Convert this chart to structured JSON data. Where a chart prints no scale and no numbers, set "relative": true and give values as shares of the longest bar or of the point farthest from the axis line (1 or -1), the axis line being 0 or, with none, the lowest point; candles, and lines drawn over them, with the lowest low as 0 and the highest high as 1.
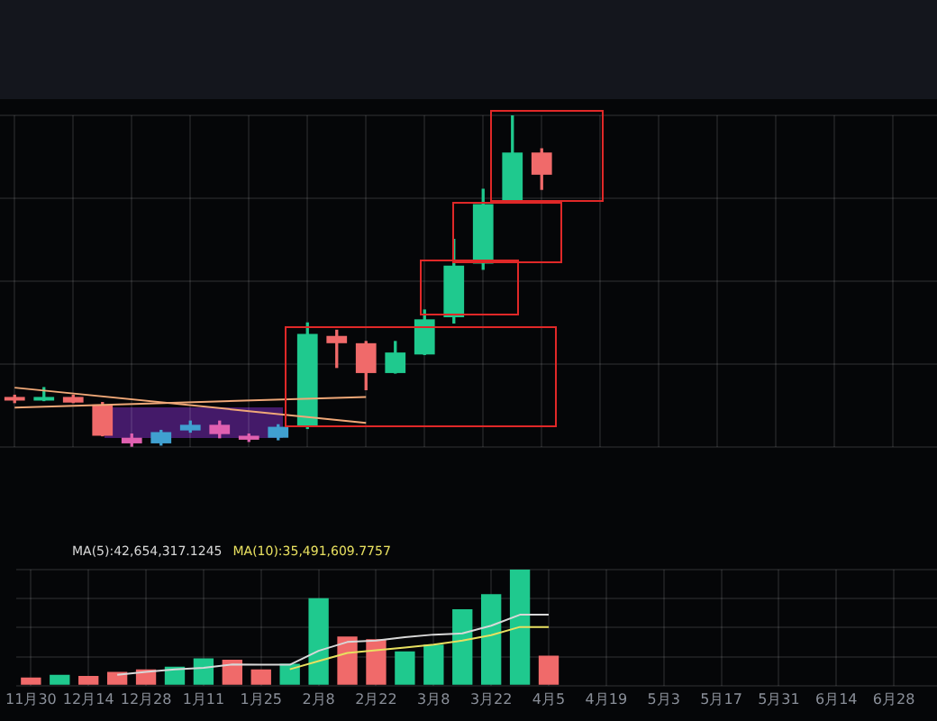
{
  "chart_data": [
    {
      "type": "candlestick",
      "relative": true,
      "grid": true,
      "tick_labels": false,
      "categories": [
        null,
        null,
        null,
        null,
        null,
        null,
        null,
        null,
        null,
        null,
        null,
        null,
        null,
        null,
        null,
        null,
        null,
        null,
        null
      ],
      "ohlc": [
        [
          0.151,
          0.156,
          0.134,
          0.14
        ],
        [
          0.14,
          0.179,
          0.14,
          0.151
        ],
        [
          0.151,
          0.156,
          0.134,
          0.134
        ],
        [
          0.128,
          0.134,
          0.034,
          0.034
        ],
        [
          0.028,
          0.039,
          0,
          0.011
        ],
        [
          0.011,
          0.05,
          0.006,
          0.045
        ],
        [
          0.05,
          0.078,
          0.045,
          0.067
        ],
        [
          0.067,
          0.078,
          0.028,
          0.039
        ],
        [
          0.034,
          0.039,
          0.017,
          0.022
        ],
        [
          0.028,
          0.067,
          0.022,
          0.061
        ],
        [
          0.061,
          0.374,
          0.056,
          0.341
        ],
        [
          0.335,
          0.352,
          0.24,
          0.313
        ],
        [
          0.313,
          0.318,
          0.173,
          0.223
        ],
        [
          0.223,
          0.318,
          0.223,
          0.285
        ],
        [
          0.279,
          0.413,
          0.279,
          0.385
        ],
        [
          0.391,
          0.626,
          0.374,
          0.547
        ],
        [
          0.553,
          0.777,
          0.536,
          0.732
        ],
        [
          0.737,
          1,
          0.737,
          0.888
        ],
        [
          0.888,
          0.899,
          0.777,
          0.821
        ]
      ],
      "colors": [
        "#f06a6a",
        "#1fc98e",
        "#f06a6a",
        "#f06a6a",
        "#e060b0",
        "#40a0d0",
        "#40a0d0",
        "#e060b0",
        "#e060b0",
        "#40a0d0",
        "#1fc98e",
        "#f06a6a",
        "#f06a6a",
        "#1fc98e",
        "#1fc98e",
        "#1fc98e",
        "#1fc98e",
        "#1fc98e",
        "#f06a6a"
      ],
      "series": [
        {
          "type": "line",
          "color": "#f0a878",
          "values": [
            0.179,
            null,
            null,
            null,
            null,
            null,
            null,
            null,
            null,
            null,
            null,
            null,
            0.073,
            null,
            null,
            null,
            null,
            null,
            null
          ]
        },
        {
          "type": "line",
          "color": "#f0a878",
          "values": [
            0.119,
            null,
            null,
            null,
            null,
            null,
            null,
            null,
            null,
            null,
            null,
            null,
            0.151,
            null,
            null,
            null,
            null,
            null,
            null
          ]
        }
      ]
    },
    {
      "type": "bar",
      "relative": true,
      "grid": true,
      "legend": "top left",
      "categories": [
        "11月30",
        null,
        "12月14",
        null,
        "12月28",
        null,
        "1月11",
        null,
        "1月25",
        null,
        "2月8",
        null,
        "2月22",
        null,
        "3月8",
        null,
        "3月22",
        null,
        "4月5",
        null,
        "4月19",
        null,
        "5月3",
        null,
        "5月17",
        null,
        "5月31",
        null,
        "6月14",
        null,
        "6月28",
        null
      ],
      "series": [
        {
          "type": "bar",
          "values": [
            0.07,
            0.094,
            0.083,
            0.118,
            0.141,
            0.164,
            0.235,
            0.224,
            0.141,
            0.189,
            0.753,
            0.423,
            0.4,
            0.295,
            0.353,
            0.658,
            0.788,
            1,
            0.259,
            null,
            null,
            null,
            null,
            null,
            null,
            null,
            null,
            null,
            null,
            null,
            null,
            null
          ],
          "colors": [
            "#f06a6a",
            "#1fc98e",
            "#f06a6a",
            "#f06a6a",
            "#f06a6a",
            "#1fc98e",
            "#1fc98e",
            "#f06a6a",
            "#f06a6a",
            "#1fc98e",
            "#1fc98e",
            "#f06a6a",
            "#f06a6a",
            "#1fc98e",
            "#1fc98e",
            "#1fc98e",
            "#1fc98e",
            "#1fc98e",
            "#f06a6a",
            null,
            null,
            null,
            null,
            null,
            null,
            null,
            null,
            null,
            null,
            null,
            null,
            null
          ]
        },
        {
          "type": "line",
          "name": "MA(5):42,654,317.1245",
          "color": "#d8d8d8",
          "values": [
            null,
            null,
            null,
            0.094,
            0.118,
            0.141,
            0.153,
            0.182,
            0.18,
            0.18,
            0.3,
            0.376,
            0.388,
            0.417,
            0.44,
            0.45,
            0.517,
            0.611,
            0.611,
            null,
            null,
            null,
            null,
            null,
            null,
            null,
            null,
            null,
            null,
            null,
            null,
            null
          ]
        },
        {
          "type": "line",
          "name": "MA(10):35,491,609.7757",
          "color": "#e8e060",
          "values": [
            null,
            null,
            null,
            null,
            null,
            null,
            null,
            null,
            null,
            0.141,
            0.212,
            0.282,
            0.306,
            0.329,
            0.353,
            0.388,
            0.435,
            0.506,
            0.506,
            null,
            null,
            null,
            null,
            null,
            null,
            null,
            null,
            null,
            null,
            null,
            null,
            null
          ]
        }
      ]
    }
  ]
}
